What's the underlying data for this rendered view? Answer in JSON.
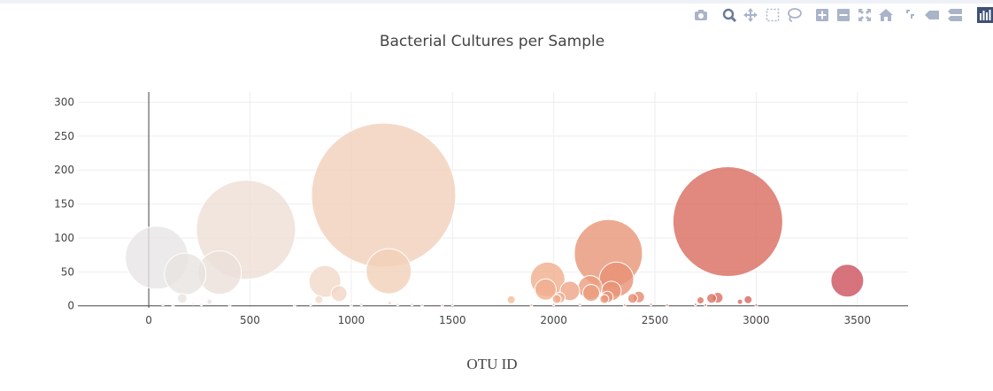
{
  "colors": {
    "accent": "#444444",
    "grid": "#eeeeee",
    "modebar_icon": "#aab4c8",
    "modebar_active": "#6b7a99"
  },
  "modebar": {
    "buttons": [
      {
        "name": "camera-icon"
      },
      {
        "name": "zoom-icon",
        "active": true
      },
      {
        "name": "pan-icon"
      },
      {
        "name": "box-select-icon"
      },
      {
        "name": "lasso-icon"
      },
      {
        "name": "zoom-in-icon"
      },
      {
        "name": "zoom-out-icon"
      },
      {
        "name": "autoscale-icon"
      },
      {
        "name": "reset-axes-icon"
      },
      {
        "name": "spike-lines-icon"
      },
      {
        "name": "hover-closest-icon"
      },
      {
        "name": "hover-compare-icon"
      },
      {
        "name": "plotly-logo-icon"
      }
    ]
  },
  "chart_data": {
    "type": "scatter",
    "title": "Bacterial Cultures per Sample",
    "xlabel": "OTU ID",
    "ylabel": "",
    "xlim": [
      -350,
      3750
    ],
    "ylim": [
      -3,
      315
    ],
    "xticks": [
      0,
      500,
      1000,
      1500,
      2000,
      2500,
      3000,
      3500
    ],
    "yticks": [
      0,
      50,
      100,
      150,
      200,
      250,
      300
    ],
    "grid": true,
    "marker_size": "proportional to y",
    "colorscale": [
      "#e6e6e6",
      "#f2d8c9",
      "#f6c09b",
      "#e0775f",
      "#cb4e5d"
    ],
    "points": [
      {
        "x": 40,
        "y": 71
      },
      {
        "x": 180,
        "y": 47
      },
      {
        "x": 165,
        "y": 11
      },
      {
        "x": 300,
        "y": 6
      },
      {
        "x": 350,
        "y": 49
      },
      {
        "x": 480,
        "y": 112
      },
      {
        "x": 840,
        "y": 9
      },
      {
        "x": 870,
        "y": 36
      },
      {
        "x": 940,
        "y": 18
      },
      {
        "x": 1160,
        "y": 163
      },
      {
        "x": 1185,
        "y": 51
      },
      {
        "x": 1190,
        "y": 4
      },
      {
        "x": 1790,
        "y": 9
      },
      {
        "x": 1970,
        "y": 39
      },
      {
        "x": 1960,
        "y": 24
      },
      {
        "x": 2015,
        "y": 10
      },
      {
        "x": 2030,
        "y": 12
      },
      {
        "x": 2080,
        "y": 22
      },
      {
        "x": 2180,
        "y": 27
      },
      {
        "x": 2185,
        "y": 19
      },
      {
        "x": 2270,
        "y": 77
      },
      {
        "x": 2250,
        "y": 10
      },
      {
        "x": 2265,
        "y": 13
      },
      {
        "x": 2285,
        "y": 22
      },
      {
        "x": 2310,
        "y": 39
      },
      {
        "x": 2390,
        "y": 11
      },
      {
        "x": 2420,
        "y": 13
      },
      {
        "x": 2725,
        "y": 8
      },
      {
        "x": 2780,
        "y": 11
      },
      {
        "x": 2810,
        "y": 12
      },
      {
        "x": 2860,
        "y": 124
      },
      {
        "x": 2920,
        "y": 6
      },
      {
        "x": 2960,
        "y": 9
      },
      {
        "x": 3450,
        "y": 37
      },
      {
        "x": 70,
        "y": 2
      },
      {
        "x": 120,
        "y": 1
      },
      {
        "x": 220,
        "y": 3
      },
      {
        "x": 260,
        "y": 2
      },
      {
        "x": 400,
        "y": 1
      },
      {
        "x": 720,
        "y": 1
      },
      {
        "x": 800,
        "y": 2
      },
      {
        "x": 1000,
        "y": 1
      },
      {
        "x": 1050,
        "y": 2
      },
      {
        "x": 1230,
        "y": 2
      },
      {
        "x": 1300,
        "y": 2
      },
      {
        "x": 1350,
        "y": 1
      },
      {
        "x": 1450,
        "y": 1
      },
      {
        "x": 1500,
        "y": 2
      },
      {
        "x": 1890,
        "y": 1
      },
      {
        "x": 2000,
        "y": 2
      },
      {
        "x": 2130,
        "y": 2
      },
      {
        "x": 2350,
        "y": 1
      },
      {
        "x": 2480,
        "y": 2
      },
      {
        "x": 2560,
        "y": 1
      },
      {
        "x": 2700,
        "y": 2
      },
      {
        "x": 2750,
        "y": 1
      },
      {
        "x": 3000,
        "y": 1
      }
    ]
  }
}
